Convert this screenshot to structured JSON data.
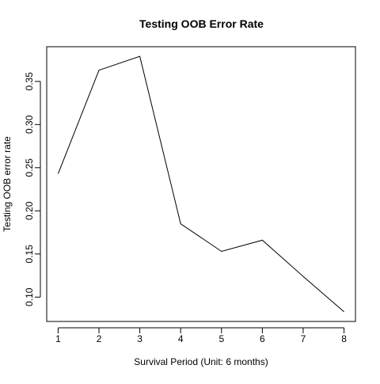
{
  "chart_data": {
    "type": "line",
    "title": "Testing OOB Error Rate",
    "xlabel": "Survival Period (Unit: 6 months)",
    "ylabel": "Testing OOB error rate",
    "x": [
      1,
      2,
      3,
      4,
      5,
      6,
      7,
      8
    ],
    "series": [
      {
        "values": [
          0.243,
          0.363,
          0.379,
          0.185,
          0.153,
          0.166,
          0.124,
          0.083
        ]
      }
    ],
    "xlim": [
      0.72,
      8.28
    ],
    "ylim": [
      0.0718,
      0.3902
    ],
    "xticks": [
      "1",
      "2",
      "3",
      "4",
      "5",
      "6",
      "7",
      "8"
    ],
    "yticks": [
      "0.10",
      "0.15",
      "0.20",
      "0.25",
      "0.30",
      "0.35"
    ],
    "grid": false,
    "line_color": "#000000"
  }
}
